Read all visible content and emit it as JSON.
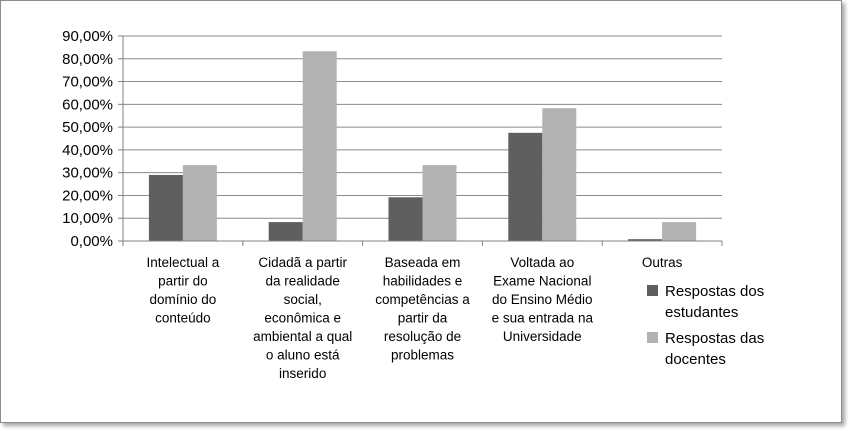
{
  "chart_data": {
    "type": "bar",
    "categories": [
      [
        "Intelectual a",
        "partir do",
        "domínio do",
        "conteúdo"
      ],
      [
        "Cidadã a partir",
        "da realidade",
        "social,",
        "econômica e",
        "ambiental a qual",
        "o aluno está",
        "inserido"
      ],
      [
        "Baseada em",
        "habilidades e",
        "competências a",
        "partir da",
        "resolução de",
        "problemas"
      ],
      [
        "Voltada ao",
        "Exame Nacional",
        "do Ensino Médio",
        "e sua entrada na",
        "Universidade"
      ],
      [
        "Outras"
      ]
    ],
    "series": [
      {
        "name": [
          "Respostas dos",
          "estudantes"
        ],
        "color": "#5f5f5f",
        "values": [
          29.0,
          8.3,
          19.2,
          47.5,
          0.8
        ]
      },
      {
        "name": [
          "Respostas das",
          "docentes"
        ],
        "color": "#b2b2b2",
        "values": [
          33.3,
          83.3,
          33.3,
          58.3,
          8.3
        ]
      }
    ],
    "ylim": [
      0,
      90
    ],
    "yticks": [
      "0,00%",
      "10,00%",
      "20,00%",
      "30,00%",
      "40,00%",
      "50,00%",
      "60,00%",
      "70,00%",
      "80,00%",
      "90,00%"
    ],
    "grid": true,
    "legend_position": "right"
  }
}
